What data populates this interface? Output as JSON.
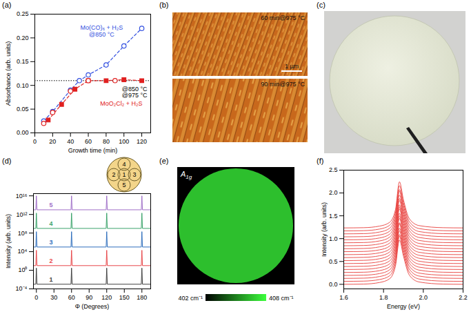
{
  "chart_data": [
    {
      "panel": "(a)",
      "type": "line",
      "x_label": "Growth time (min)",
      "y_label": "Absorbance (arb. units)",
      "xlim": [
        0,
        130
      ],
      "xticks": [
        0,
        20,
        40,
        60,
        80,
        100,
        120
      ],
      "ylim": [
        0,
        0.25
      ],
      "yticks": [
        {
          "value": 0,
          "label": "0.00"
        },
        {
          "value": 0.05,
          "label": "0.05"
        },
        {
          "value": 0.1,
          "label": "0.10"
        },
        {
          "value": 0.15,
          "label": "0.15"
        },
        {
          "value": 0.2,
          "label": "0.20"
        },
        {
          "value": 0.25,
          "label": "0.25"
        }
      ],
      "reference_line": {
        "value": 0.11,
        "line_style": "dotted",
        "color": "#000000"
      },
      "series": [
        {
          "color": "#3350e0",
          "marker": "circle-open",
          "line_style": "dashed",
          "x": [
            10,
            20,
            40,
            50,
            60,
            80,
            100,
            120
          ],
          "values": [
            0.025,
            0.045,
            0.09,
            0.11,
            0.122,
            0.143,
            0.183,
            0.22
          ]
        },
        {
          "color": "#e02020",
          "marker": "square",
          "line_style": "dashed",
          "x": [
            15,
            30,
            45,
            60,
            80,
            100,
            120
          ],
          "values": [
            0.027,
            0.06,
            0.092,
            0.11,
            0.11,
            0.112,
            0.11
          ]
        },
        {
          "color": "#e02020",
          "marker": "circle-open",
          "line_style": "none",
          "x": [
            10,
            20,
            40,
            60,
            90
          ],
          "values": [
            0.02,
            0.043,
            0.088,
            0.11,
            0.11
          ]
        }
      ],
      "annotations": [
        {
          "text": "Mo(CO)₆ + H₂S",
          "x": 75,
          "y": 0.222,
          "color": "#3350e0"
        },
        {
          "text": "@850 °C",
          "x": 75,
          "y": 0.207,
          "color": "#3350e0"
        },
        {
          "text": "@850 °C",
          "x": 112,
          "y": 0.092,
          "color": "#000000"
        },
        {
          "text": "@975 °C",
          "x": 112,
          "y": 0.079,
          "color": "#000000"
        },
        {
          "text": "MoO₂Cl₂ + H₂S",
          "x": 97,
          "y": 0.061,
          "color": "#e02020"
        }
      ]
    },
    {
      "panel": "(d)",
      "type": "line",
      "log": "y",
      "x_label": "Φ (Degrees)",
      "y_label": "Intensity (arb. units)",
      "xlim": [
        -5,
        195
      ],
      "xticks": [
        0,
        30,
        60,
        90,
        120,
        150,
        180
      ],
      "ylim": [
        0.0001,
        3e+16
      ],
      "yticks": [
        {
          "value": 0.0001,
          "label": "10⁻⁴"
        },
        {
          "value": 1,
          "label": "10⁰"
        },
        {
          "value": 10000.0,
          "label": "10⁴"
        },
        {
          "value": 100000000.0,
          "label": "10⁸"
        },
        {
          "value": 1000000000000.0,
          "label": "10¹²"
        },
        {
          "value": 1e+16,
          "label": "10¹⁶"
        }
      ],
      "x": [
        -5,
        -1,
        0,
        1,
        59,
        60,
        61,
        119,
        120,
        121,
        179,
        180,
        181,
        195
      ],
      "series": [
        {
          "name": "1",
          "color": "#404040",
          "values": [
            0.001,
            0.001,
            3,
            0.001,
            0.001,
            3,
            0.001,
            0.001,
            3,
            0.001,
            0.001,
            3,
            0.001,
            0.001
          ]
        },
        {
          "name": "2",
          "color": "#e8474a",
          "values": [
            10,
            10,
            20000,
            10,
            10,
            20000,
            10,
            10,
            20000,
            10,
            10,
            20000,
            10,
            10
          ]
        },
        {
          "name": "3",
          "color": "#2f6fbd",
          "values": [
            100000,
            100000,
            200000000,
            100000,
            100000,
            200000000,
            100000,
            100000,
            200000000,
            100000,
            100000,
            200000000,
            100000,
            100000
          ]
        },
        {
          "name": "4",
          "color": "#3aa36a",
          "values": [
            1000000000.0,
            1000000000.0,
            2000000000000.0,
            1000000000.0,
            1000000000.0,
            2000000000000.0,
            1000000000.0,
            1000000000.0,
            2000000000000.0,
            1000000000.0,
            1000000000.0,
            2000000000000.0,
            1000000000.0,
            1000000000.0
          ]
        },
        {
          "name": "5",
          "color": "#a070c8",
          "values": [
            10000000000000.0,
            10000000000000.0,
            1e+16,
            10000000000000.0,
            10000000000000.0,
            1e+16,
            10000000000000.0,
            10000000000000.0,
            1e+16,
            10000000000000.0,
            10000000000000.0,
            1e+16,
            10000000000000.0,
            10000000000000.0
          ]
        }
      ]
    },
    {
      "panel": "(f)",
      "type": "line",
      "x_label": "Energy (eV)",
      "y_label": "Intensity (arb. units)",
      "xlim": [
        1.6,
        2.2
      ],
      "xticks": [
        1.6,
        1.8,
        {
          "value": 2,
          "label": "2.0"
        },
        2.2
      ],
      "ylim": [
        -0.1,
        2.5
      ],
      "yticks": [
        {
          "value": 0,
          "label": "0.0"
        },
        0.5,
        {
          "value": 1,
          "label": "1.0"
        },
        1.5,
        {
          "value": 2,
          "label": "2.0"
        },
        2.5
      ],
      "color": "#e8403c",
      "x": [
        1.6,
        1.7,
        1.78,
        1.83,
        1.86,
        1.88,
        1.9,
        1.93,
        1.98,
        2.1,
        2.2
      ],
      "series": [
        {
          "values": [
            0,
            0.005,
            0.04,
            0.12,
            0.4,
            0.97,
            0.62,
            0.2,
            0.05,
            0.005,
            0
          ]
        },
        {
          "values": [
            0.065,
            0.07,
            0.105,
            0.185,
            0.465,
            1.055,
            0.685,
            0.265,
            0.115,
            0.07,
            0.065
          ]
        },
        {
          "values": [
            0.13,
            0.135,
            0.17,
            0.25,
            0.53,
            1.09,
            0.75,
            0.33,
            0.18,
            0.135,
            0.13
          ]
        },
        {
          "values": [
            0.195,
            0.2,
            0.235,
            0.315,
            0.595,
            1.175,
            0.815,
            0.395,
            0.245,
            0.2,
            0.195
          ]
        },
        {
          "values": [
            0.26,
            0.265,
            0.3,
            0.38,
            0.66,
            1.23,
            0.88,
            0.46,
            0.31,
            0.265,
            0.26
          ]
        },
        {
          "values": [
            0.325,
            0.33,
            0.365,
            0.445,
            0.725,
            1.325,
            0.945,
            0.525,
            0.375,
            0.33,
            0.325
          ]
        },
        {
          "values": [
            0.39,
            0.395,
            0.43,
            0.51,
            0.79,
            1.35,
            1.01,
            0.59,
            0.44,
            0.395,
            0.39
          ]
        },
        {
          "values": [
            0.455,
            0.46,
            0.495,
            0.575,
            0.855,
            1.445,
            1.075,
            0.655,
            0.505,
            0.46,
            0.455
          ]
        },
        {
          "values": [
            0.52,
            0.525,
            0.56,
            0.64,
            0.92,
            1.5,
            1.14,
            0.72,
            0.57,
            0.525,
            0.52
          ]
        },
        {
          "values": [
            0.585,
            0.59,
            0.625,
            0.705,
            0.985,
            1.555,
            1.205,
            0.785,
            0.635,
            0.59,
            0.585
          ]
        },
        {
          "values": [
            0.65,
            0.655,
            0.69,
            0.77,
            1.05,
            1.65,
            1.27,
            0.85,
            0.7,
            0.655,
            0.65
          ]
        },
        {
          "values": [
            0.715,
            0.72,
            0.755,
            0.835,
            1.115,
            1.695,
            1.335,
            0.915,
            0.765,
            0.72,
            0.715
          ]
        },
        {
          "values": [
            0.78,
            0.785,
            0.82,
            0.9,
            1.18,
            1.74,
            1.4,
            0.98,
            0.83,
            0.785,
            0.78
          ]
        },
        {
          "values": [
            0.845,
            0.85,
            0.885,
            0.965,
            1.245,
            1.835,
            1.465,
            1.045,
            0.895,
            0.85,
            0.845
          ]
        },
        {
          "values": [
            0.91,
            0.915,
            0.95,
            1.03,
            1.31,
            1.88,
            1.53,
            1.11,
            0.96,
            0.915,
            0.91
          ]
        },
        {
          "values": [
            0.975,
            0.98,
            1.015,
            1.095,
            1.375,
            1.955,
            1.595,
            1.175,
            1.025,
            0.98,
            0.975
          ]
        },
        {
          "values": [
            1.04,
            1.045,
            1.08,
            1.16,
            1.44,
            2.04,
            1.66,
            1.24,
            1.09,
            1.045,
            1.04
          ]
        },
        {
          "values": [
            1.105,
            1.11,
            1.145,
            1.225,
            1.505,
            2.075,
            1.725,
            1.305,
            1.155,
            1.11,
            1.105
          ]
        },
        {
          "values": [
            1.17,
            1.175,
            1.21,
            1.29,
            1.57,
            2.16,
            1.79,
            1.37,
            1.22,
            1.175,
            1.17
          ]
        },
        {
          "values": [
            1.235,
            1.24,
            1.275,
            1.355,
            1.635,
            2.245,
            1.855,
            1.435,
            1.285,
            1.24,
            1.235
          ]
        }
      ]
    }
  ],
  "images": {
    "b": {
      "panel": "(b)",
      "images": [
        {
          "label": "60 min@975 °C"
        },
        {
          "label": "90 min@975 °C"
        }
      ],
      "scale_bar": "1 µm"
    },
    "c": {
      "panel": "(c)"
    },
    "e": {
      "panel": "(e)",
      "label": "A",
      "label_sub": "1g",
      "map_value": 406.5,
      "colorbar": {
        "range": [
          402,
          408
        ],
        "colors": [
          "#000000",
          "#3cff3c"
        ],
        "ticks": [
          {
            "value": 402,
            "label": "402 cm⁻¹"
          },
          {
            "value": 408,
            "label": "408 cm⁻¹"
          }
        ]
      }
    }
  }
}
